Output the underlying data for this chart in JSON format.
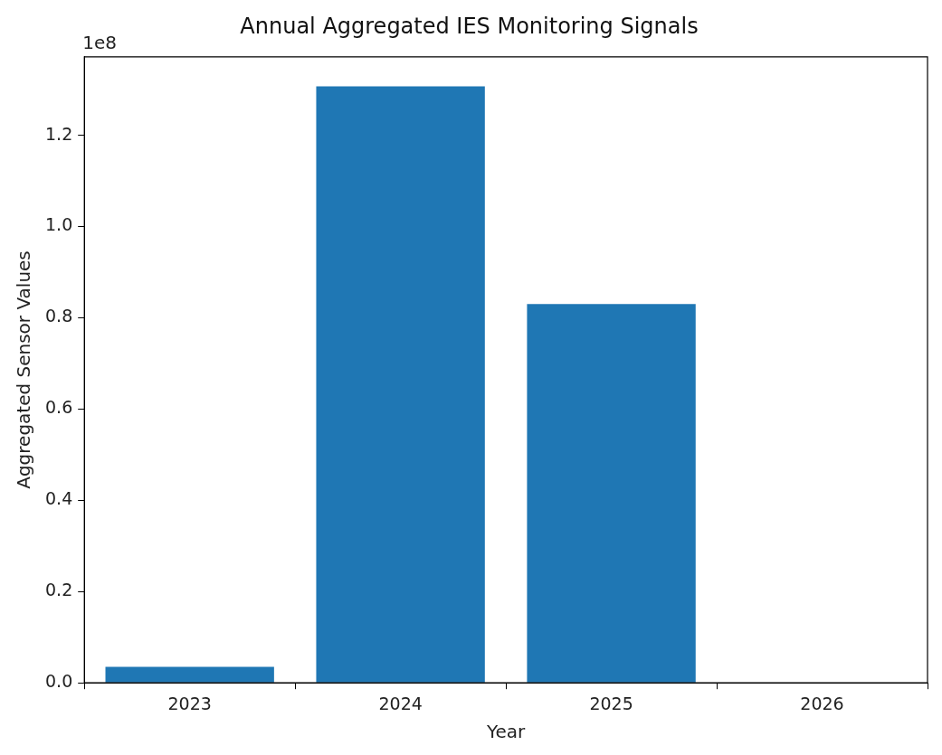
{
  "chart_data": {
    "type": "bar",
    "title": "Annual Aggregated IES Monitoring Signals",
    "xlabel": "Year",
    "ylabel": "Aggregated Sensor Values",
    "categories": [
      "2023",
      "2024",
      "2025",
      "2026"
    ],
    "values": [
      0.035,
      1.307,
      0.83,
      0
    ],
    "color": "#1f77b4",
    "ylim": [
      0,
      1.372
    ],
    "yticks": [
      {
        "value": 0,
        "label": "0.0"
      },
      {
        "value": 0.2,
        "label": "0.2"
      },
      {
        "value": 0.4,
        "label": "0.4"
      },
      {
        "value": 0.6,
        "label": "0.6"
      },
      {
        "value": 0.8,
        "label": "0.8"
      },
      {
        "value": 1.0,
        "label": "1.0"
      },
      {
        "value": 1.2,
        "label": "1.2"
      }
    ],
    "annotations": [
      "1e8"
    ]
  }
}
